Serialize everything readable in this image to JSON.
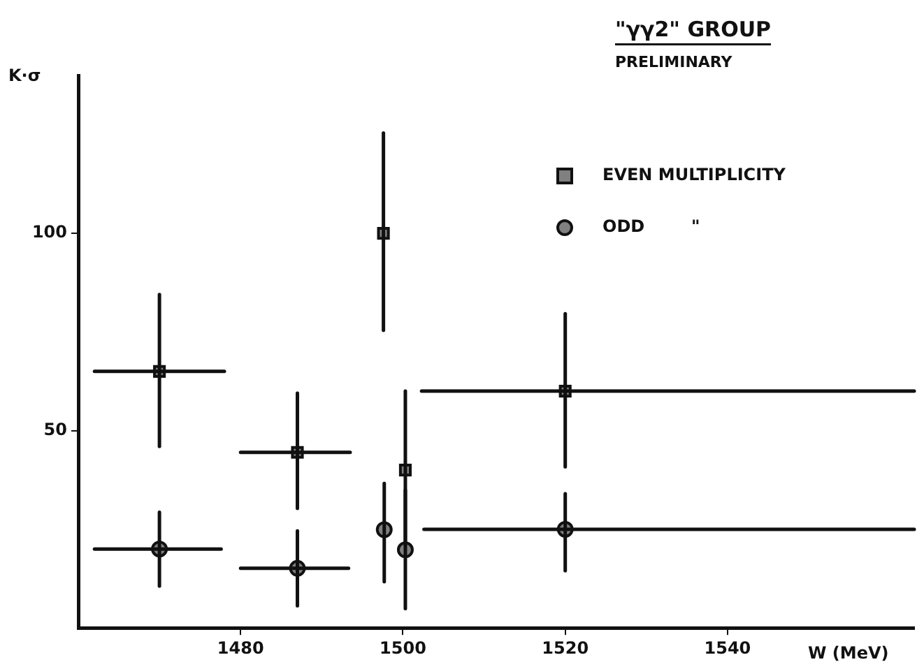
{
  "chart_data": {
    "type": "scatter",
    "title": "\"γγ2\" GROUP",
    "subtitle": "PRELIMINARY",
    "xlabel": "W (MeV)",
    "ylabel": "K·σ",
    "xlim": [
      1460,
      1563
    ],
    "ylim": [
      0,
      140
    ],
    "xticks": [
      1480,
      1500,
      1520,
      1540
    ],
    "yticks": [
      50,
      100
    ],
    "grid": false,
    "legend": "top right",
    "series": [
      {
        "name": "EVEN MULTIPLICITY",
        "color": "#111111",
        "marker": "square",
        "x": [
          1470,
          1487,
          1497.6,
          1500.3,
          1520
        ],
        "values": [
          65,
          44.5,
          100,
          40,
          60
        ],
        "errors": [
          [
            46,
            84.5
          ],
          [
            30.3,
            59.5
          ],
          [
            75.4,
            125.4
          ],
          [
            21,
            60
          ],
          [
            40.8,
            79.6
          ]
        ],
        "xerrors": [
          [
            1462,
            1478
          ],
          [
            1480,
            1493.5
          ],
          null,
          null,
          [
            1502.3,
            1563
          ]
        ]
      },
      {
        "name": "ODD        \"",
        "color": "#111111",
        "marker": "circle",
        "x": [
          1470,
          1487,
          1497.7,
          1500.3,
          1520
        ],
        "values": [
          20,
          15.1,
          24.9,
          19.8,
          25
        ],
        "errors": [
          [
            10.6,
            29.3
          ],
          [
            5.6,
            24.6
          ],
          [
            11.7,
            36.6
          ],
          [
            4.9,
            34.9
          ],
          [
            14.5,
            34
          ]
        ],
        "xerrors": [
          [
            1462,
            1477.6
          ],
          [
            1480,
            1493.3
          ],
          null,
          null,
          [
            1502.6,
            1563
          ]
        ]
      }
    ]
  }
}
